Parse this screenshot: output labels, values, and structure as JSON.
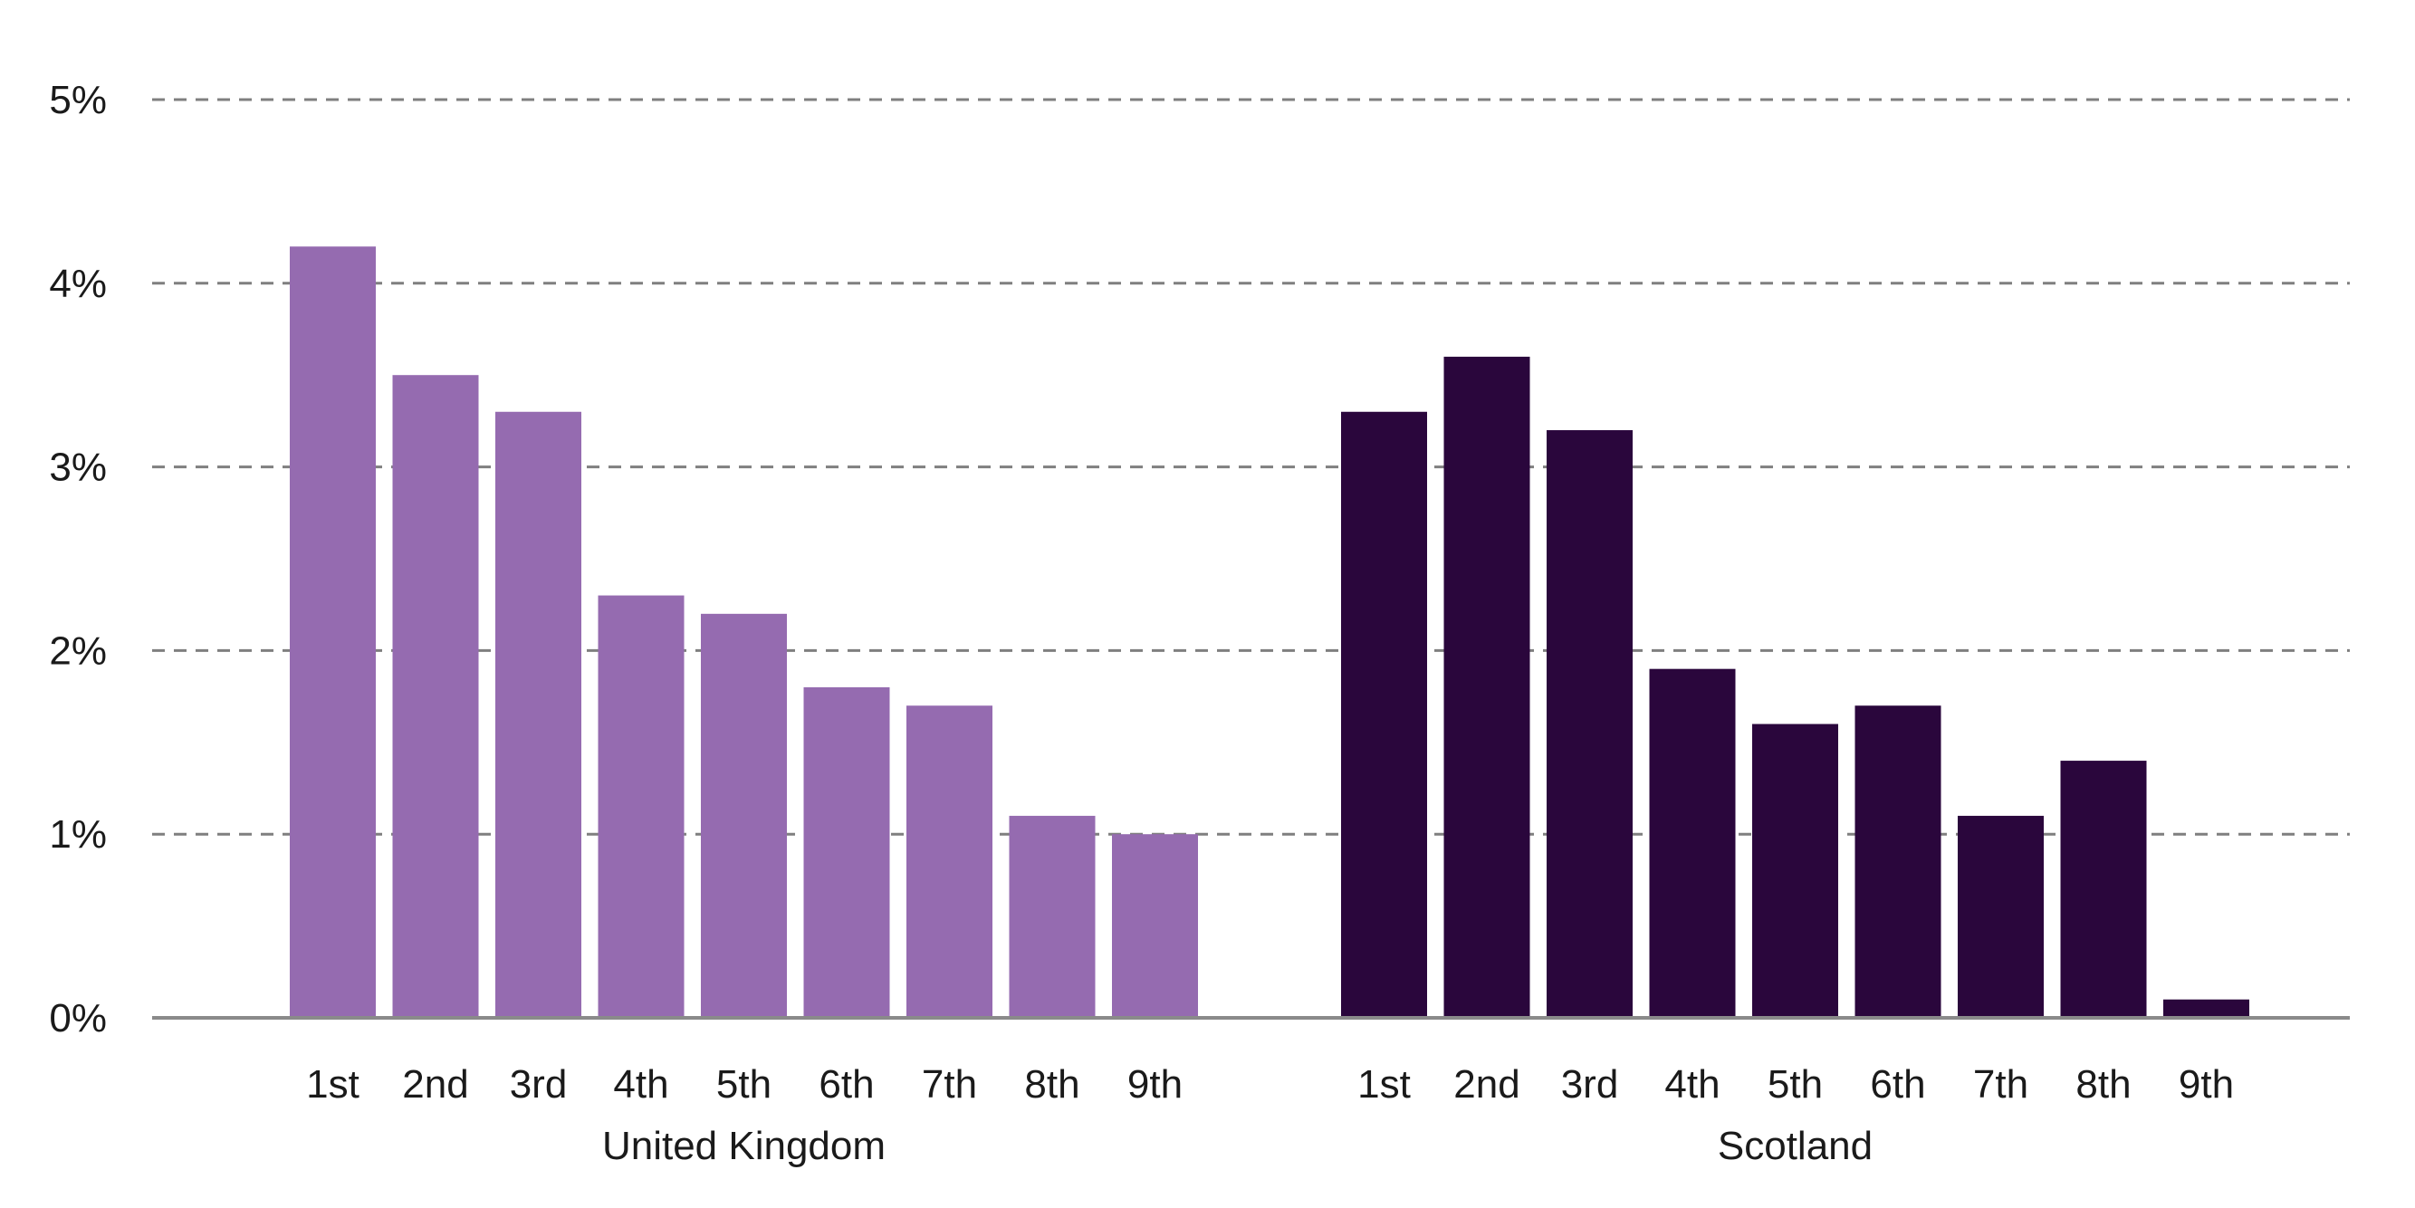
{
  "chart_data": {
    "type": "bar",
    "ylim": [
      0,
      5
    ],
    "y_ticks": [
      "0%",
      "1%",
      "2%",
      "3%",
      "4%",
      "5%"
    ],
    "grid": "horizontal dashed",
    "groups": [
      {
        "name": "United Kingdom",
        "color": "#956bb0",
        "categories": [
          "1st",
          "2nd",
          "3rd",
          "4th",
          "5th",
          "6th",
          "7th",
          "8th",
          "9th"
        ],
        "values": [
          4.2,
          3.5,
          3.3,
          2.3,
          2.2,
          1.8,
          1.7,
          1.1,
          1.0
        ]
      },
      {
        "name": "Scotland",
        "color": "#2a063c",
        "categories": [
          "1st",
          "2nd",
          "3rd",
          "4th",
          "5th",
          "6th",
          "7th",
          "8th",
          "9th"
        ],
        "values": [
          3.3,
          3.6,
          3.2,
          1.9,
          1.6,
          1.7,
          1.1,
          1.4,
          0.1
        ]
      }
    ]
  }
}
